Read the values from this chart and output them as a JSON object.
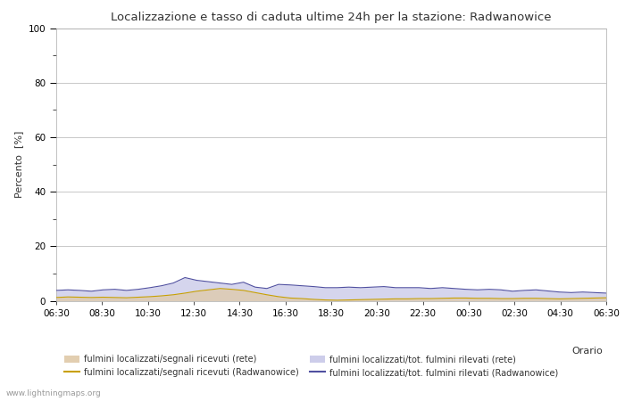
{
  "title": "Localizzazione e tasso di caduta ultime 24h per la stazione: Radwanowice",
  "ylabel": "Percento  [%]",
  "xlabel": "Orario",
  "ylim": [
    0,
    100
  ],
  "yticks": [
    0,
    20,
    40,
    60,
    80,
    100
  ],
  "ytick_minor": [
    10,
    30,
    50,
    70,
    90
  ],
  "xtick_labels": [
    "06:30",
    "08:30",
    "10:30",
    "12:30",
    "14:30",
    "16:30",
    "18:30",
    "20:30",
    "22:30",
    "00:30",
    "02:30",
    "04:30",
    "06:30"
  ],
  "background_color": "#ffffff",
  "plot_bg_color": "#ffffff",
  "grid_color": "#c8c8c8",
  "watermark": "www.lightningmaps.org",
  "fill_rete_color": "#dfc9a8",
  "fill_rete_alpha": 0.75,
  "fill_radwan_color": "#c8c8e8",
  "fill_radwan_alpha": 0.75,
  "line_rete_color": "#c8a000",
  "line_radwan_color": "#5050a0",
  "area_rete_values": [
    1.2,
    1.4,
    1.3,
    1.2,
    1.3,
    1.2,
    1.1,
    1.3,
    1.5,
    1.8,
    2.2,
    2.8,
    3.5,
    4.0,
    4.5,
    4.2,
    3.8,
    3.0,
    2.2,
    1.5,
    1.0,
    0.8,
    0.5,
    0.3,
    0.2,
    0.3,
    0.4,
    0.5,
    0.6,
    0.7,
    0.7,
    0.8,
    0.8,
    0.9,
    1.0,
    1.0,
    0.9,
    0.9,
    0.8,
    0.8,
    0.9,
    0.9,
    0.8,
    0.7,
    0.8,
    0.9,
    1.0,
    1.1
  ],
  "area_radwan_values": [
    3.8,
    4.0,
    3.8,
    3.5,
    4.0,
    4.2,
    3.8,
    4.2,
    4.8,
    5.5,
    6.5,
    8.5,
    7.5,
    7.0,
    6.5,
    6.0,
    6.8,
    5.0,
    4.5,
    6.0,
    5.8,
    5.5,
    5.2,
    4.8,
    4.8,
    5.0,
    4.8,
    5.0,
    5.2,
    4.8,
    4.8,
    4.8,
    4.5,
    4.8,
    4.5,
    4.2,
    4.0,
    4.2,
    4.0,
    3.5,
    3.8,
    4.0,
    3.6,
    3.2,
    3.0,
    3.2,
    3.0,
    2.8
  ],
  "legend_labels": [
    "fulmini localizzati/segnali ricevuti (rete)",
    "fulmini localizzati/segnali ricevuti (Radwanowice)",
    "fulmini localizzati/tot. fulmini rilevati (rete)",
    "fulmini localizzati/tot. fulmini rilevati (Radwanowice)"
  ]
}
